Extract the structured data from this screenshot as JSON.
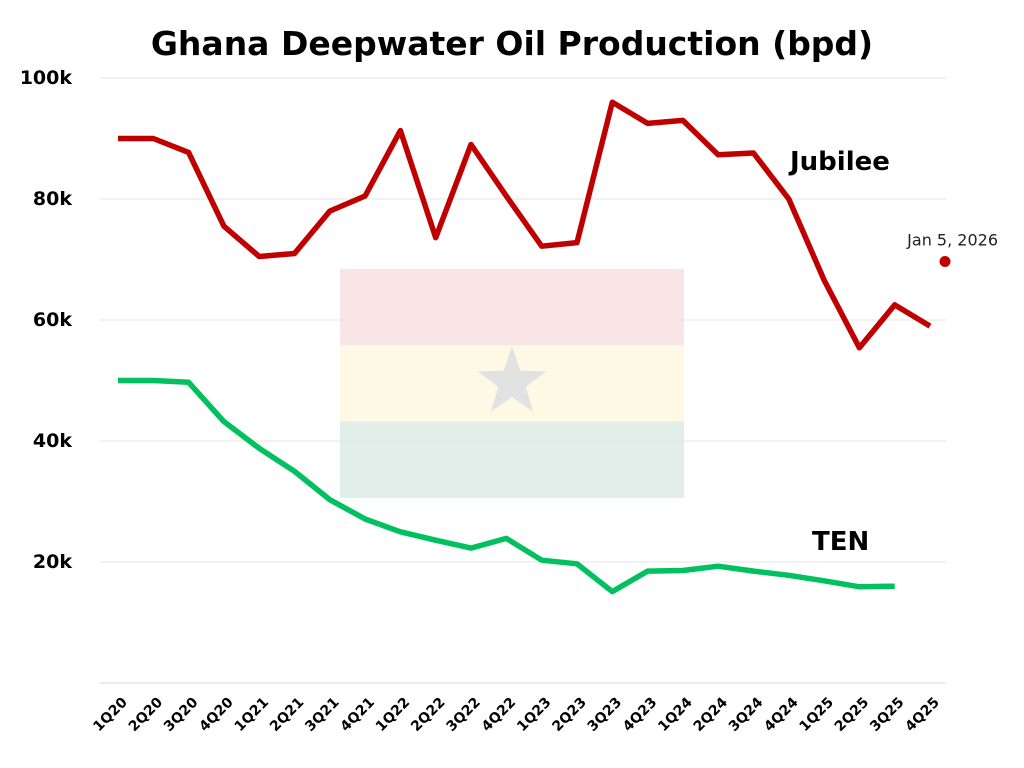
{
  "chart_data": {
    "type": "line",
    "title": "Ghana Deepwater Oil Production (bpd)",
    "xlabel": "",
    "ylabel": "",
    "ylim": [
      0,
      100000
    ],
    "yticks": [
      {
        "value": 20000,
        "label": "20k"
      },
      {
        "value": 40000,
        "label": "40k"
      },
      {
        "value": 60000,
        "label": "60k"
      },
      {
        "value": 80000,
        "label": "80k"
      },
      {
        "value": 100000,
        "label": "100k"
      }
    ],
    "grid": true,
    "categories": [
      "1Q20",
      "2Q20",
      "3Q20",
      "4Q20",
      "1Q21",
      "2Q21",
      "3Q21",
      "4Q21",
      "1Q22",
      "2Q22",
      "3Q22",
      "4Q22",
      "1Q23",
      "2Q23",
      "3Q23",
      "4Q23",
      "1Q24",
      "2Q24",
      "3Q24",
      "4Q24",
      "1Q25",
      "2Q25",
      "3Q25",
      "4Q25"
    ],
    "series": [
      {
        "name": "Jubilee",
        "color": "#c00000",
        "values": [
          90000,
          90000,
          87700,
          75500,
          70500,
          71000,
          78000,
          80500,
          91300,
          73600,
          89000,
          80500,
          72200,
          72800,
          96000,
          92500,
          93000,
          87300,
          87600,
          80000,
          66600,
          55400,
          62500,
          59000
        ]
      },
      {
        "name": "TEN",
        "color": "#00c060",
        "values": [
          50000,
          50000,
          49700,
          43200,
          38800,
          35000,
          30300,
          27100,
          25000,
          23600,
          22300,
          23900,
          20300,
          19700,
          15100,
          18500,
          18600,
          19300,
          18500,
          17800,
          16900,
          15900,
          16000,
          null
        ]
      }
    ],
    "annotations": [
      {
        "text": "Jan 5, 2026",
        "value": 70000,
        "color": "#c00000"
      }
    ],
    "background_flag": {
      "name": "Ghana flag",
      "colors": [
        "#ce1126",
        "#fcd116",
        "#006b3f"
      ],
      "star_color": "#000000",
      "icon": "star-icon"
    }
  }
}
